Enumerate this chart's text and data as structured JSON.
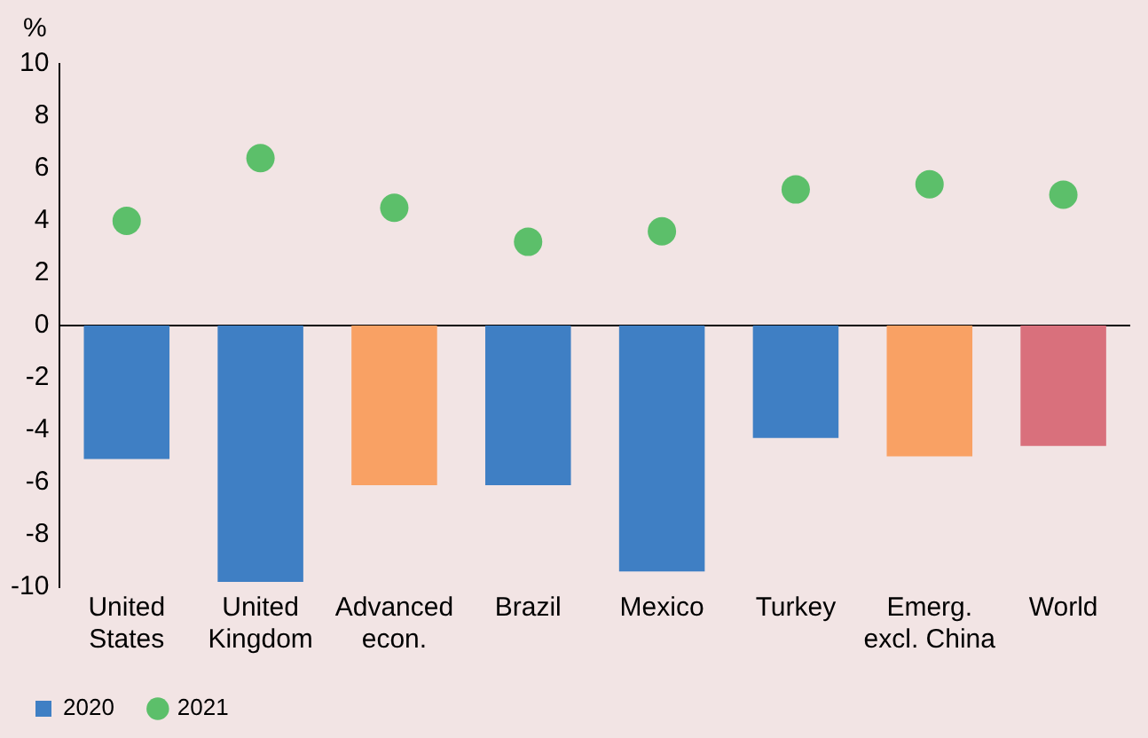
{
  "chart_data": {
    "type": "bar",
    "ylabel": "%",
    "categories": [
      "United States",
      "United Kingdom",
      "Advanced econ.",
      "Brazil",
      "Mexico",
      "Turkey",
      "Emerg. excl. China",
      "World"
    ],
    "series": [
      {
        "name": "2020",
        "color": "#3f7fc4",
        "colors": [
          "#3f7fc4",
          "#3f7fc4",
          "#f9a164",
          "#3f7fc4",
          "#3f7fc4",
          "#3f7fc4",
          "#f9a164",
          "#d9707c"
        ],
        "values": [
          -5.1,
          -9.8,
          -6.1,
          -6.1,
          -9.4,
          -4.3,
          -5.0,
          -4.6
        ]
      },
      {
        "name": "2021",
        "type": "scatter",
        "color": "#5cbf6a",
        "marker": "circle",
        "values": [
          4.0,
          6.4,
          4.5,
          3.2,
          3.6,
          5.2,
          5.4,
          5.0
        ]
      }
    ],
    "ylim": [
      -10,
      10
    ],
    "yticks": [
      -10,
      -8,
      -6,
      -4,
      -2,
      0,
      2,
      4,
      6,
      8,
      10
    ],
    "grid": false,
    "ref_lines": [
      {
        "axis": "y",
        "value": 0,
        "color": "#000000"
      }
    ],
    "legend": "bottom"
  }
}
